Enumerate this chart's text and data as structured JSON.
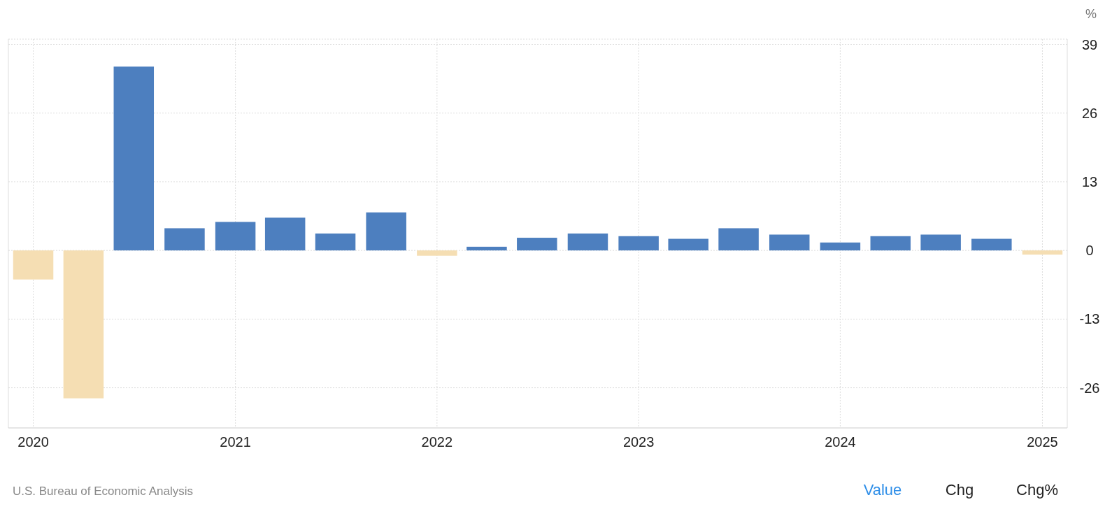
{
  "chart_data": {
    "type": "bar",
    "ylabel": "%",
    "x": [
      "2020-01",
      "2020-04",
      "2020-07",
      "2020-10",
      "2021-01",
      "2021-04",
      "2021-07",
      "2021-10",
      "2022-01",
      "2022-04",
      "2022-07",
      "2022-10",
      "2023-01",
      "2023-04",
      "2023-07",
      "2023-10",
      "2024-01",
      "2024-04",
      "2024-07",
      "2024-10",
      "2025-01"
    ],
    "values": [
      -5.5,
      -28.0,
      34.8,
      4.2,
      5.4,
      6.2,
      3.2,
      7.2,
      -1.0,
      0.7,
      2.4,
      3.2,
      2.7,
      2.2,
      4.2,
      3.0,
      1.5,
      2.7,
      3.0,
      2.2,
      -0.8
    ],
    "colors": [
      "#f5deb3",
      "#f5deb3",
      "#4d7fbf",
      "#4d7fbf",
      "#4d7fbf",
      "#4d7fbf",
      "#4d7fbf",
      "#4d7fbf",
      "#f5deb3",
      "#4d7fbf",
      "#4d7fbf",
      "#4d7fbf",
      "#4d7fbf",
      "#4d7fbf",
      "#4d7fbf",
      "#4d7fbf",
      "#4d7fbf",
      "#4d7fbf",
      "#4d7fbf",
      "#4d7fbf",
      "#f5deb3"
    ],
    "xlim": [
      "2019-11-17",
      "2025-02-15"
    ],
    "xticks": [
      {
        "value": "2020-01-01",
        "label": "2020"
      },
      {
        "value": "2021-01-01",
        "label": "2021"
      },
      {
        "value": "2022-01-01",
        "label": "2022"
      },
      {
        "value": "2023-01-01",
        "label": "2023"
      },
      {
        "value": "2024-01-01",
        "label": "2024"
      },
      {
        "value": "2025-01-01",
        "label": "2025"
      }
    ],
    "ylim": [
      -33.6,
      40
    ],
    "yticks": [
      -26,
      -13,
      0,
      13,
      26,
      39
    ],
    "grid": true,
    "annotations": [
      "U.S. Bureau of Economic Analysis",
      "Value",
      "Chg",
      "Chg%"
    ]
  }
}
